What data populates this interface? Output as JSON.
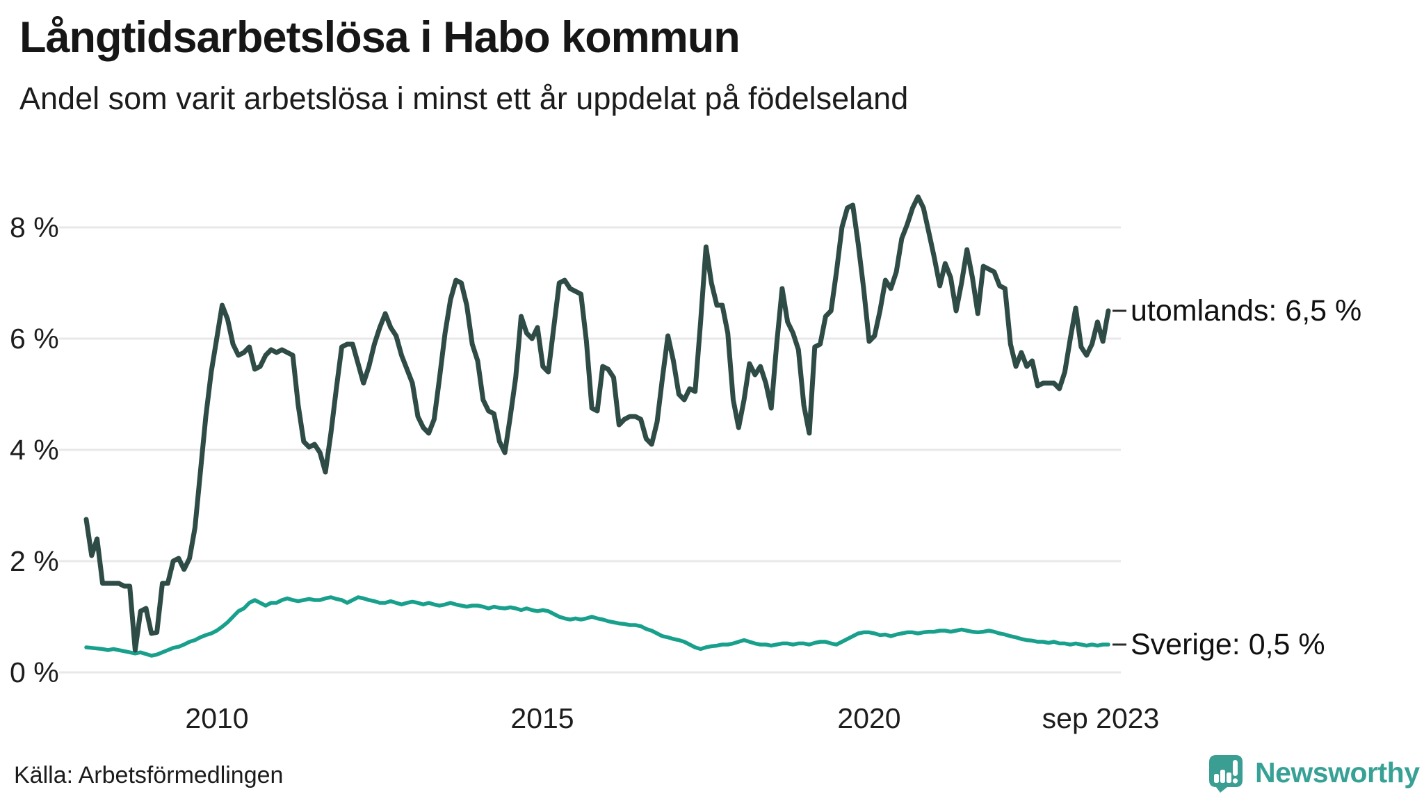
{
  "title": "Långtidsarbetslösa i Habo kommun",
  "subtitle": "Andel som varit arbetslösa i minst ett år uppdelat på födelseland",
  "source": "Källa: Arbetsförmedlingen",
  "logo": {
    "text": "Newsworthy"
  },
  "colors": {
    "utomlands_line": "#2e4b45",
    "sverige_line": "#18a08c",
    "gridline": "#e8e8eb",
    "brand_teal": "#38a195"
  },
  "chart_data": {
    "type": "line",
    "title": "Långtidsarbetslösa i Habo kommun",
    "subtitle": "Andel som varit arbetslösa i minst ett år uppdelat på födelseland",
    "x_unit": "month",
    "x_start": "2008-01",
    "x_end": "2023-09",
    "ylim": [
      0,
      8.8
    ],
    "grid": "horizontal",
    "legend_position": "right-edge-labels",
    "y_tick_labels": [
      "8 %",
      "6 %",
      "4 %",
      "2 %",
      "0 %"
    ],
    "y_tick_values": [
      8,
      6,
      4,
      2,
      0
    ],
    "x_tick_labels": [
      "2010",
      "2015",
      "2020",
      "sep 2023"
    ],
    "series": [
      {
        "name": "utomlands",
        "label": "utomlands: 6,5 %",
        "latest_value": 6.5,
        "color": "#2e4b45",
        "values": [
          2.75,
          2.1,
          2.4,
          1.6,
          1.6,
          1.6,
          1.6,
          1.55,
          1.55,
          0.4,
          1.1,
          1.15,
          0.7,
          0.72,
          1.6,
          1.6,
          2.0,
          2.05,
          1.85,
          2.05,
          2.6,
          3.6,
          4.6,
          5.4,
          6.0,
          6.6,
          6.35,
          5.9,
          5.7,
          5.75,
          5.85,
          5.45,
          5.5,
          5.7,
          5.8,
          5.75,
          5.8,
          5.75,
          5.7,
          4.8,
          4.15,
          4.05,
          4.1,
          3.95,
          3.6,
          4.3,
          5.1,
          5.85,
          5.9,
          5.9,
          5.55,
          5.2,
          5.5,
          5.9,
          6.2,
          6.45,
          6.2,
          6.05,
          5.7,
          5.45,
          5.2,
          4.6,
          4.4,
          4.3,
          4.55,
          5.3,
          6.1,
          6.7,
          7.05,
          7.0,
          6.6,
          5.9,
          5.6,
          4.9,
          4.7,
          4.65,
          4.15,
          3.95,
          4.6,
          5.3,
          6.4,
          6.1,
          6.0,
          6.2,
          5.5,
          5.4,
          6.2,
          7.0,
          7.05,
          6.9,
          6.85,
          6.8,
          5.95,
          4.75,
          4.7,
          5.5,
          5.45,
          5.3,
          4.45,
          4.55,
          4.6,
          4.6,
          4.55,
          4.2,
          4.1,
          4.5,
          5.3,
          6.05,
          5.6,
          5.0,
          4.9,
          5.1,
          5.05,
          6.3,
          7.65,
          7.0,
          6.6,
          6.6,
          6.1,
          4.9,
          4.4,
          4.9,
          5.55,
          5.35,
          5.5,
          5.2,
          4.75,
          5.9,
          6.9,
          6.3,
          6.1,
          5.8,
          4.8,
          4.3,
          5.85,
          5.9,
          6.4,
          6.5,
          7.2,
          8.0,
          8.35,
          8.4,
          7.7,
          6.9,
          5.95,
          6.05,
          6.5,
          7.05,
          6.9,
          7.2,
          7.8,
          8.05,
          8.35,
          8.55,
          8.35,
          7.9,
          7.45,
          6.95,
          7.35,
          7.1,
          6.5,
          7.0,
          7.6,
          7.1,
          6.45,
          7.3,
          7.25,
          7.2,
          6.95,
          6.9,
          5.9,
          5.5,
          5.75,
          5.5,
          5.6,
          5.15,
          5.2,
          5.2,
          5.2,
          5.1,
          5.4,
          6.0,
          6.55,
          5.85,
          5.7,
          5.9,
          6.3,
          5.95,
          6.5
        ]
      },
      {
        "name": "Sverige",
        "label": "Sverige: 0,5 %",
        "latest_value": 0.5,
        "color": "#18a08c",
        "values": [
          0.45,
          0.44,
          0.43,
          0.42,
          0.4,
          0.42,
          0.4,
          0.38,
          0.36,
          0.34,
          0.36,
          0.33,
          0.3,
          0.32,
          0.36,
          0.4,
          0.44,
          0.46,
          0.5,
          0.55,
          0.58,
          0.63,
          0.67,
          0.7,
          0.75,
          0.82,
          0.9,
          1.0,
          1.1,
          1.15,
          1.25,
          1.3,
          1.25,
          1.2,
          1.25,
          1.25,
          1.3,
          1.33,
          1.3,
          1.28,
          1.3,
          1.32,
          1.3,
          1.3,
          1.33,
          1.35,
          1.32,
          1.3,
          1.25,
          1.3,
          1.35,
          1.33,
          1.3,
          1.28,
          1.25,
          1.25,
          1.28,
          1.25,
          1.22,
          1.25,
          1.27,
          1.25,
          1.22,
          1.25,
          1.22,
          1.2,
          1.22,
          1.25,
          1.22,
          1.2,
          1.18,
          1.2,
          1.2,
          1.18,
          1.15,
          1.18,
          1.16,
          1.15,
          1.17,
          1.15,
          1.12,
          1.15,
          1.12,
          1.1,
          1.12,
          1.1,
          1.05,
          1.0,
          0.97,
          0.95,
          0.97,
          0.95,
          0.97,
          1.0,
          0.97,
          0.95,
          0.92,
          0.9,
          0.88,
          0.87,
          0.85,
          0.85,
          0.83,
          0.78,
          0.75,
          0.7,
          0.65,
          0.63,
          0.6,
          0.58,
          0.55,
          0.5,
          0.45,
          0.42,
          0.45,
          0.47,
          0.48,
          0.5,
          0.5,
          0.52,
          0.55,
          0.58,
          0.55,
          0.52,
          0.5,
          0.5,
          0.48,
          0.5,
          0.52,
          0.52,
          0.5,
          0.52,
          0.52,
          0.5,
          0.53,
          0.55,
          0.55,
          0.52,
          0.5,
          0.55,
          0.6,
          0.65,
          0.7,
          0.72,
          0.72,
          0.7,
          0.67,
          0.68,
          0.65,
          0.68,
          0.7,
          0.72,
          0.72,
          0.7,
          0.72,
          0.73,
          0.73,
          0.75,
          0.75,
          0.73,
          0.75,
          0.77,
          0.75,
          0.73,
          0.72,
          0.73,
          0.75,
          0.73,
          0.7,
          0.68,
          0.65,
          0.63,
          0.6,
          0.58,
          0.57,
          0.55,
          0.55,
          0.53,
          0.55,
          0.52,
          0.52,
          0.5,
          0.52,
          0.5,
          0.48,
          0.5,
          0.48,
          0.5,
          0.5
        ]
      }
    ]
  }
}
